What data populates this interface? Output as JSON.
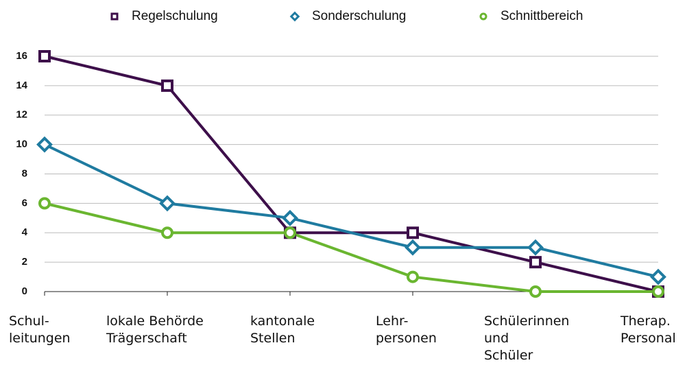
{
  "chart_data": {
    "type": "line",
    "categories": [
      "Schul-\nleitungen",
      "lokale Behörde\nTrägerschaft",
      "kantonale\nStellen",
      "Lehr-\npersonen",
      "Schülerinnen\nund\nSchüler",
      "Therap.\nPersonal"
    ],
    "series": [
      {
        "name": "Regelschulung",
        "color": "#3d0f4a",
        "marker": "square",
        "values": [
          16,
          14,
          4,
          4,
          2,
          0
        ]
      },
      {
        "name": "Sonderschulung",
        "color": "#1f7ba0",
        "marker": "diamond",
        "values": [
          10,
          6,
          5,
          3,
          3,
          1
        ]
      },
      {
        "name": "Schnittbereich",
        "color": "#6ab630",
        "marker": "circle",
        "values": [
          6,
          4,
          4,
          1,
          0,
          0
        ]
      }
    ],
    "ylim": [
      0,
      16
    ],
    "yticks": [
      0,
      2,
      4,
      6,
      8,
      10,
      12,
      14,
      16
    ],
    "grid": true,
    "legend": "top"
  }
}
